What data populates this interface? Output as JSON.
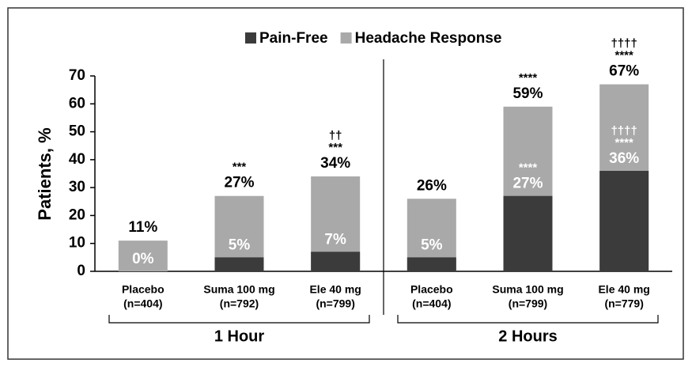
{
  "chart_data": {
    "type": "overlay_bar",
    "ylabel": "Patients, %",
    "categories": [
      [
        "Placebo",
        "(n=404)"
      ],
      [
        "Suma 100 mg",
        "(n=792)"
      ],
      [
        "Ele 40 mg",
        "(n=799)"
      ],
      [
        "Placebo",
        "(n=404)"
      ],
      [
        "Suma 100 mg",
        "(n=799)"
      ],
      [
        "Ele 40 mg",
        "(n=779)"
      ]
    ],
    "groups": [
      "1 Hour",
      "2 Hours"
    ],
    "series": [
      {
        "name": "Pain-Free",
        "color": "#3b3b3b",
        "values": [
          0,
          5,
          7,
          5,
          27,
          36
        ],
        "value_labels": [
          "0%",
          "5%",
          "7%",
          "5%",
          "27%",
          "36%"
        ],
        "annotations": [
          [],
          [],
          [],
          [],
          [
            "****"
          ],
          [
            "††††",
            "****"
          ]
        ]
      },
      {
        "name": "Headache Response",
        "color": "#a9a9a9",
        "values": [
          11,
          27,
          34,
          26,
          59,
          67
        ],
        "value_labels": [
          "11%",
          "27%",
          "34%",
          "26%",
          "59%",
          "67%"
        ],
        "annotations": [
          [],
          [
            "***"
          ],
          [
            "††",
            "***"
          ],
          [],
          [
            "****"
          ],
          [
            "††††",
            "****"
          ]
        ]
      }
    ],
    "ylim": [
      0,
      70
    ],
    "yticks": [
      0,
      10,
      20,
      30,
      40,
      50,
      60,
      70
    ],
    "legend": "top"
  }
}
